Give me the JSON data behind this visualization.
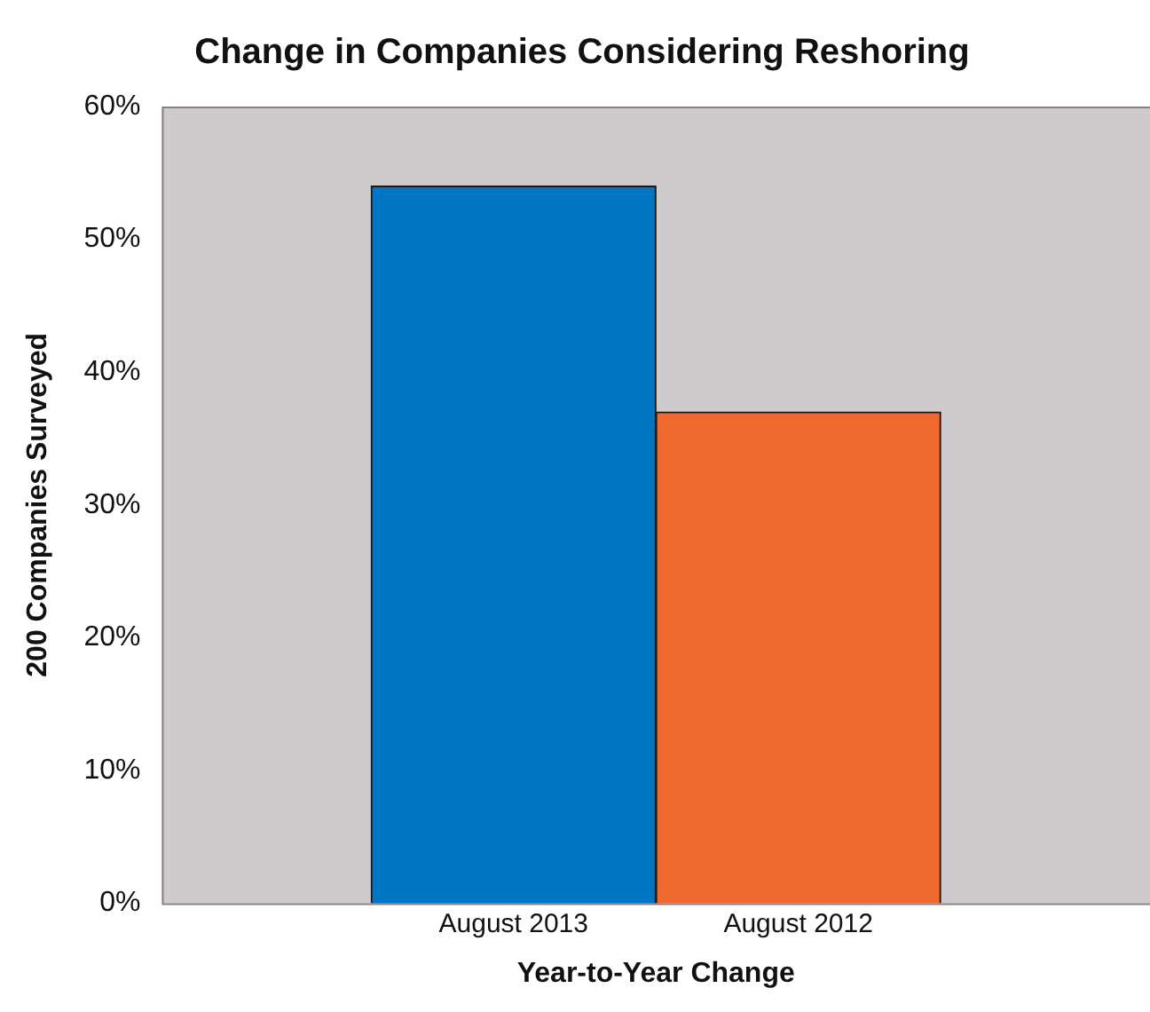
{
  "chart_data": {
    "type": "bar",
    "title": "Change in Companies Considering Reshoring",
    "xlabel": "Year-to-Year Change",
    "ylabel": "200 Companies Surveyed",
    "categories": [
      "August 2013",
      "August 2012"
    ],
    "values": [
      54,
      37
    ],
    "colors": [
      "#0077c4",
      "#f06a30"
    ],
    "ylim": [
      0,
      60
    ],
    "yticks": [
      {
        "value": 0,
        "label": "0%"
      },
      {
        "value": 10,
        "label": "10%"
      },
      {
        "value": 20,
        "label": "20%"
      },
      {
        "value": 30,
        "label": "30%"
      },
      {
        "value": 40,
        "label": "40%"
      },
      {
        "value": 50,
        "label": "50%"
      },
      {
        "value": 60,
        "label": "60%"
      }
    ],
    "grid": false,
    "legend": false
  }
}
